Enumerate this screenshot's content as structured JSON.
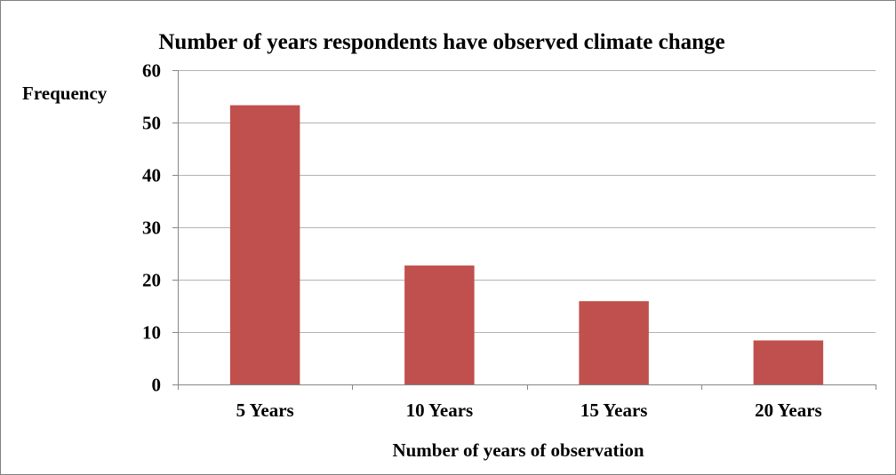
{
  "chart_data": {
    "type": "bar",
    "title": "Number of years respondents have observed climate change",
    "xlabel": "Number of years of observation",
    "ylabel": "Frequency",
    "categories": [
      "5 Years",
      "10 Years",
      "15 Years",
      "20 Years"
    ],
    "values": [
      53.3,
      22.7,
      15.9,
      8.4
    ],
    "ylim": [
      0,
      60
    ],
    "yticks": [
      0,
      10,
      20,
      30,
      40,
      50,
      60
    ],
    "grid": true,
    "legend": "none",
    "bar_color": "#C0504D"
  }
}
